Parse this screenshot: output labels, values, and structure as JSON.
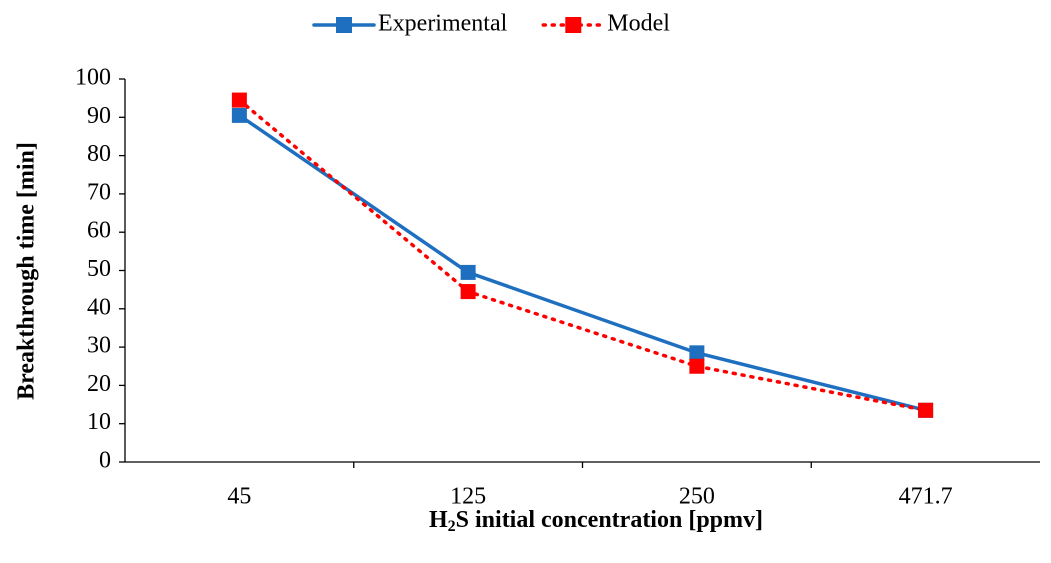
{
  "chart_data": {
    "type": "line",
    "categories": [
      "45",
      "125",
      "250",
      "471.7"
    ],
    "series": [
      {
        "name": "Experimental",
        "color": "#1f6fc0",
        "dash": "solid",
        "values": [
          90.5,
          49.5,
          28.5,
          13.5
        ]
      },
      {
        "name": "Model",
        "color": "#ff0000",
        "dash": "dotted",
        "values": [
          94.5,
          44.5,
          25,
          13.5
        ]
      }
    ],
    "x_label": [
      "H",
      "2",
      "S initial concentration [ppmv]"
    ],
    "y_label": "Breakthrough time [min]",
    "ylim": [
      0,
      100
    ],
    "yticks": [
      0,
      10,
      20,
      30,
      40,
      50,
      60,
      70,
      80,
      90,
      100
    ],
    "grid": false,
    "legend": "top"
  }
}
